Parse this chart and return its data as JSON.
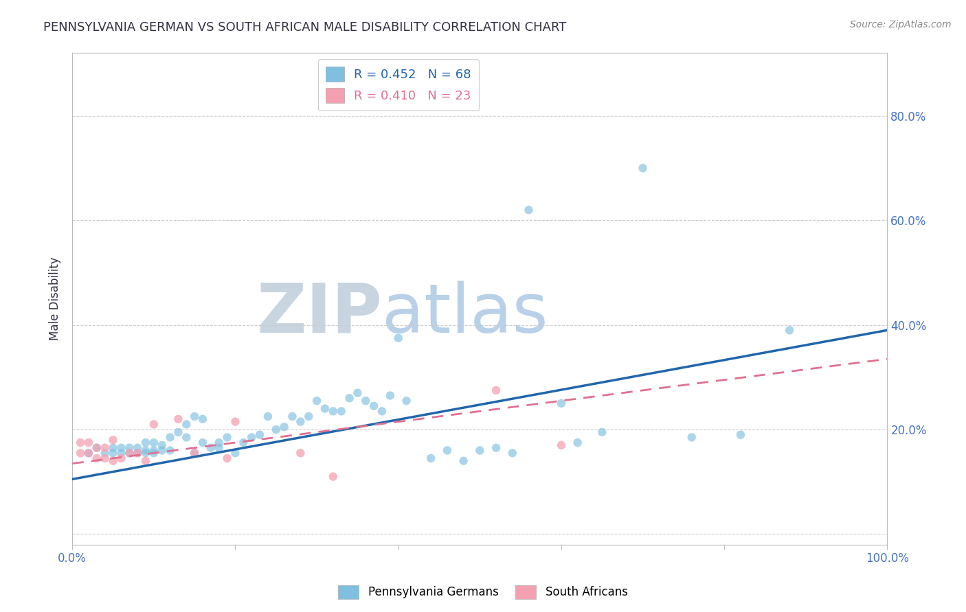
{
  "title": "PENNSYLVANIA GERMAN VS SOUTH AFRICAN MALE DISABILITY CORRELATION CHART",
  "source": "Source: ZipAtlas.com",
  "ylabel": "Male Disability",
  "xlim": [
    0.0,
    1.0
  ],
  "ylim": [
    -0.02,
    0.92
  ],
  "y_ticks": [
    0.0,
    0.2,
    0.4,
    0.6,
    0.8
  ],
  "y_tick_labels": [
    "",
    "20.0%",
    "40.0%",
    "60.0%",
    "80.0%"
  ],
  "x_ticks": [
    0.0,
    0.2,
    0.4,
    0.6,
    0.8,
    1.0
  ],
  "x_tick_labels": [
    "0.0%",
    "",
    "",
    "",
    "",
    "100.0%"
  ],
  "grid_color": "#cccccc",
  "background_color": "#ffffff",
  "blue_color": "#7fbfdf",
  "pink_color": "#f4a0b0",
  "blue_line_color": "#2166ac",
  "pink_line_color": "#e07090",
  "R_blue": 0.452,
  "N_blue": 68,
  "R_pink": 0.41,
  "N_pink": 23,
  "legend_label_blue": "Pennsylvania Germans",
  "legend_label_pink": "South Africans",
  "blue_scatter_x": [
    0.02,
    0.03,
    0.04,
    0.05,
    0.05,
    0.06,
    0.06,
    0.07,
    0.07,
    0.08,
    0.08,
    0.09,
    0.09,
    0.09,
    0.1,
    0.1,
    0.1,
    0.11,
    0.11,
    0.12,
    0.12,
    0.13,
    0.14,
    0.14,
    0.15,
    0.15,
    0.16,
    0.16,
    0.17,
    0.18,
    0.18,
    0.19,
    0.2,
    0.21,
    0.22,
    0.23,
    0.24,
    0.25,
    0.26,
    0.27,
    0.28,
    0.29,
    0.3,
    0.31,
    0.32,
    0.33,
    0.34,
    0.35,
    0.36,
    0.37,
    0.38,
    0.39,
    0.4,
    0.41,
    0.44,
    0.46,
    0.48,
    0.5,
    0.52,
    0.54,
    0.56,
    0.6,
    0.62,
    0.65,
    0.7,
    0.76,
    0.82,
    0.88
  ],
  "blue_scatter_y": [
    0.155,
    0.165,
    0.155,
    0.155,
    0.165,
    0.155,
    0.165,
    0.155,
    0.165,
    0.155,
    0.165,
    0.155,
    0.16,
    0.175,
    0.155,
    0.16,
    0.175,
    0.16,
    0.17,
    0.16,
    0.185,
    0.195,
    0.185,
    0.21,
    0.155,
    0.225,
    0.175,
    0.22,
    0.165,
    0.175,
    0.165,
    0.185,
    0.155,
    0.175,
    0.185,
    0.19,
    0.225,
    0.2,
    0.205,
    0.225,
    0.215,
    0.225,
    0.255,
    0.24,
    0.235,
    0.235,
    0.26,
    0.27,
    0.255,
    0.245,
    0.235,
    0.265,
    0.375,
    0.255,
    0.145,
    0.16,
    0.14,
    0.16,
    0.165,
    0.155,
    0.62,
    0.25,
    0.175,
    0.195,
    0.7,
    0.185,
    0.19,
    0.39
  ],
  "pink_scatter_x": [
    0.01,
    0.01,
    0.02,
    0.02,
    0.03,
    0.03,
    0.04,
    0.04,
    0.05,
    0.05,
    0.06,
    0.07,
    0.08,
    0.09,
    0.1,
    0.13,
    0.15,
    0.19,
    0.2,
    0.28,
    0.32,
    0.52,
    0.6
  ],
  "pink_scatter_y": [
    0.155,
    0.175,
    0.155,
    0.175,
    0.145,
    0.165,
    0.145,
    0.165,
    0.14,
    0.18,
    0.145,
    0.155,
    0.155,
    0.14,
    0.21,
    0.22,
    0.155,
    0.145,
    0.215,
    0.155,
    0.11,
    0.275,
    0.17
  ],
  "blue_line_x": [
    0.0,
    1.0
  ],
  "blue_line_y": [
    0.105,
    0.39
  ],
  "pink_line_x": [
    0.0,
    1.0
  ],
  "pink_line_y": [
    0.135,
    0.335
  ],
  "title_color": "#333344",
  "source_color": "#888888",
  "axis_label_color": "#333344",
  "tick_color": "#4472c4",
  "watermark_color_zip": "#c8d4e0",
  "watermark_color_atlas": "#b8cde8",
  "marker_size": 80,
  "title_fontsize": 13,
  "source_fontsize": 10
}
